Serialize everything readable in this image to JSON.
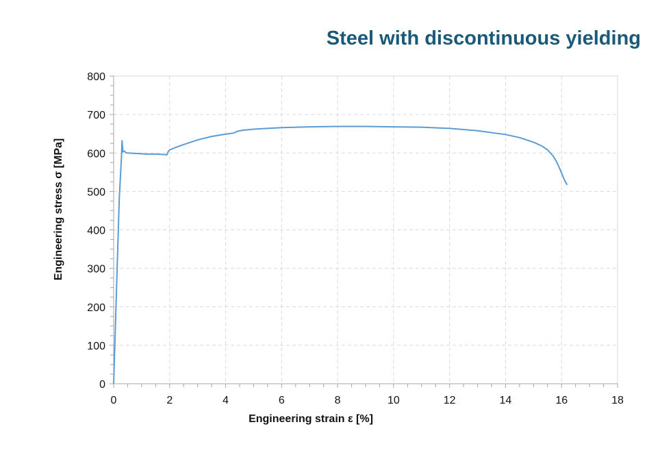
{
  "chart_data": {
    "type": "line",
    "title": "Steel with discontinuous yielding",
    "xlabel": "Engineering strain ε [%]",
    "ylabel": "Engineering stress σ [MPa]",
    "xlim": [
      0,
      18
    ],
    "ylim": [
      0,
      800
    ],
    "x_ticks": [
      0,
      2,
      4,
      6,
      8,
      10,
      12,
      14,
      16,
      18
    ],
    "y_ticks": [
      0,
      100,
      200,
      300,
      400,
      500,
      600,
      700,
      800
    ],
    "grid": true,
    "line_color": "#5b9bd5",
    "series": [
      {
        "x": [
          0,
          0.1,
          0.2,
          0.28,
          0.3,
          0.33,
          0.38,
          0.45,
          0.5,
          0.7,
          1.0,
          1.2,
          1.5,
          1.8,
          1.9,
          1.95,
          2.0,
          2.2,
          2.5,
          3.0,
          3.5,
          4.0,
          4.3,
          4.4,
          4.6,
          5.0,
          6.0,
          7.0,
          8.0,
          9.0,
          10.0,
          11.0,
          12.0,
          13.0,
          14.0,
          14.5,
          15.0,
          15.3,
          15.5,
          15.7,
          15.8,
          15.9,
          16.0,
          16.1,
          16.2
        ],
        "y": [
          0,
          240,
          480,
          590,
          632,
          603,
          605,
          600,
          600,
          599,
          598,
          597,
          597,
          596,
          595,
          604,
          608,
          614,
          622,
          634,
          643,
          649,
          652,
          656,
          659,
          662,
          666,
          668,
          669,
          669,
          668,
          667,
          664,
          658,
          648,
          640,
          628,
          618,
          608,
          592,
          580,
          565,
          548,
          530,
          517
        ]
      }
    ]
  }
}
